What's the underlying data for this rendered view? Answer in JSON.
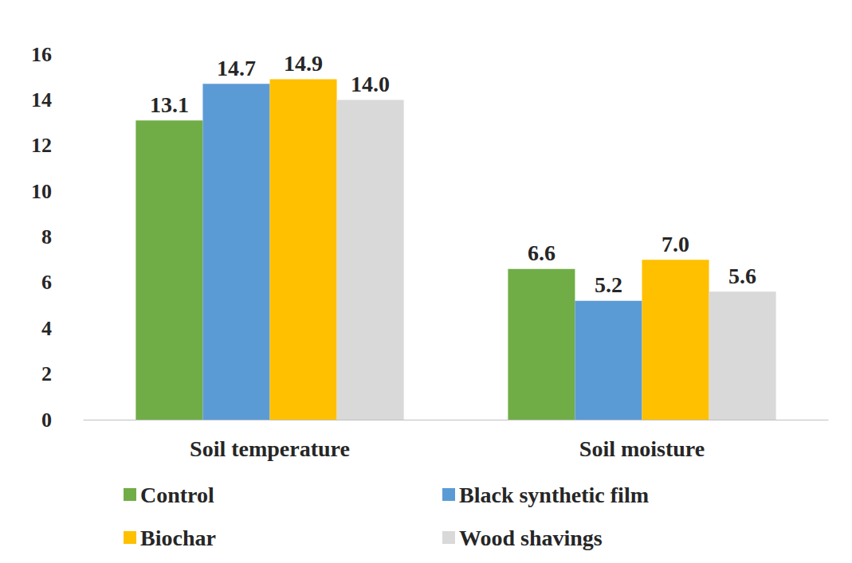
{
  "chart_data": {
    "type": "bar",
    "categories": [
      "Soil temperature",
      "Soil moisture"
    ],
    "series": [
      {
        "name": "Control",
        "color": "#70ad47",
        "values": [
          13.1,
          6.6
        ],
        "value_labels": [
          "13.1",
          "6.6"
        ]
      },
      {
        "name": "Black synthetic film",
        "color": "#5b9bd5",
        "values": [
          14.7,
          5.2
        ],
        "value_labels": [
          "14.7",
          "5.2"
        ]
      },
      {
        "name": "Biochar",
        "color": "#ffc000",
        "values": [
          14.9,
          7.0
        ],
        "value_labels": [
          "14.9",
          "7.0"
        ]
      },
      {
        "name": "Wood shavings",
        "color": "#d9d9d9",
        "values": [
          14.0,
          5.6
        ],
        "value_labels": [
          "14.0",
          "5.6"
        ]
      }
    ],
    "ylim": [
      0,
      16
    ],
    "yticks": [
      0,
      2,
      4,
      6,
      8,
      10,
      12,
      14,
      16
    ],
    "grid": false,
    "data_labels": true,
    "legend": "bottom"
  }
}
